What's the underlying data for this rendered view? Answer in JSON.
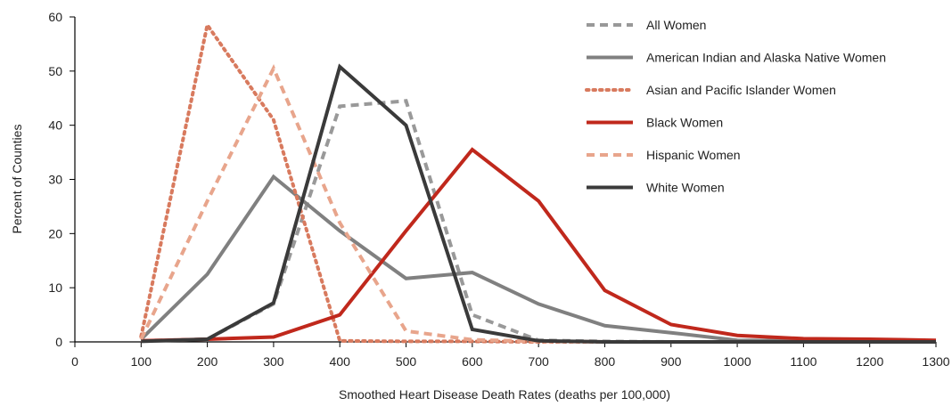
{
  "chart_data": {
    "type": "line",
    "xlabel": "Smoothed Heart Disease Death Rates (deaths per 100,000)",
    "ylabel": "Percent of Counties",
    "xlim": [
      0,
      1300
    ],
    "ylim": [
      0,
      60
    ],
    "x_ticks": [
      0,
      100,
      200,
      300,
      400,
      500,
      600,
      700,
      800,
      900,
      1000,
      1100,
      1200,
      1300
    ],
    "y_ticks": [
      0,
      10,
      20,
      30,
      40,
      50,
      60
    ],
    "grid": false,
    "legend_position": "top-right",
    "x": [
      100,
      200,
      300,
      400,
      500,
      600,
      700,
      800,
      900,
      1000,
      1100,
      1200,
      1300
    ],
    "series": [
      {
        "name": "All Women",
        "color": "#999999",
        "dash": "dashed",
        "values": [
          0.2,
          0.5,
          7,
          43.5,
          44.5,
          5,
          0.3,
          0.1,
          0,
          0,
          0,
          0,
          0
        ]
      },
      {
        "name": "American Indian and Alaska Native Women",
        "color": "#808080",
        "dash": "solid",
        "values": [
          0.5,
          12.5,
          30.5,
          20.5,
          11.7,
          12.8,
          7,
          3,
          1.7,
          0.3,
          0.2,
          0.1,
          0
        ]
      },
      {
        "name": "Asian and Pacific Islander Women",
        "color": "#d87a5e",
        "dash": "dotted",
        "values": [
          1,
          58.5,
          41,
          0.2,
          0.1,
          0.1,
          0,
          0,
          0,
          0,
          0,
          0,
          0
        ]
      },
      {
        "name": "Black Women",
        "color": "#c0281c",
        "dash": "solid",
        "values": [
          0.2,
          0.5,
          0.9,
          5,
          20.5,
          35.5,
          26,
          9.5,
          3.2,
          1.2,
          0.6,
          0.5,
          0.3
        ]
      },
      {
        "name": "Hispanic Women",
        "color": "#e8a58c",
        "dash": "dashed",
        "values": [
          0.5,
          26,
          50.5,
          22,
          2,
          0.4,
          0.1,
          0,
          0,
          0,
          0,
          0,
          0
        ]
      },
      {
        "name": "White Women",
        "color": "#3a3a3a",
        "dash": "solid",
        "values": [
          0.1,
          0.5,
          7.2,
          50.8,
          40,
          2.3,
          0.2,
          0,
          0,
          0,
          0,
          0,
          0
        ]
      }
    ]
  }
}
